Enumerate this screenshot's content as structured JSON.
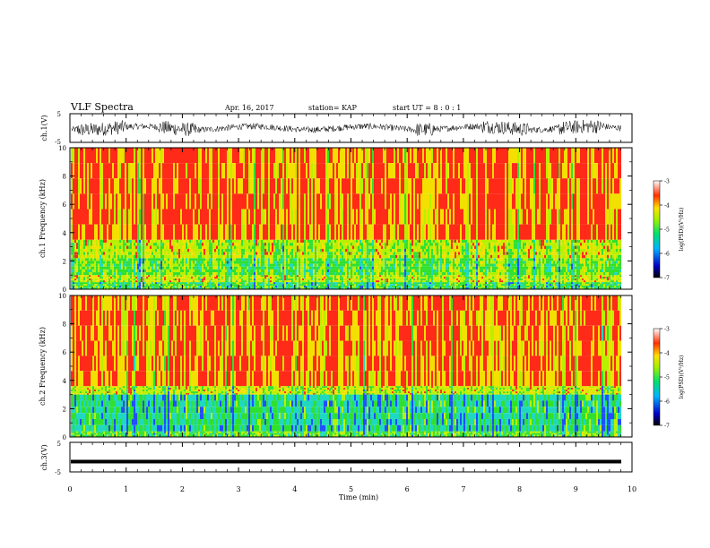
{
  "header": {
    "title": "VLF Spectra",
    "date": "Apr. 16, 2017",
    "station": "station= KAP",
    "start": "start UT = 8 : 0 : 1"
  },
  "chart_data": [
    {
      "type": "line",
      "name": "ch1-waveform",
      "ylabel": "ch.1(V)",
      "ylim": [
        -5,
        5
      ],
      "yticks": [
        "5",
        "-5"
      ],
      "xlim": [
        0,
        10
      ],
      "note_values": "approximate noisy waveform around 0 V with bursts up to about ±2.5 V"
    },
    {
      "type": "heatmap",
      "name": "ch1-spectrogram",
      "ylabel": "ch.1 Frequency (kHz)",
      "ylim": [
        0,
        10
      ],
      "yticks": [
        "0",
        "2",
        "4",
        "6",
        "8",
        "10"
      ],
      "xlim": [
        0,
        10
      ],
      "bands": [
        {
          "from": 0,
          "to": 0.5,
          "level": -5.2
        },
        {
          "from": 0.5,
          "to": 1.0,
          "level": -4.6
        },
        {
          "from": 1.0,
          "to": 2.2,
          "level": -5.0
        },
        {
          "from": 2.2,
          "to": 3.5,
          "level": -4.6
        },
        {
          "from": 3.5,
          "to": 10,
          "level": -3.9
        }
      ],
      "colorbar": {
        "label": "log(PSD)(V²/Hz)",
        "range": [
          -7,
          -3
        ],
        "ticks": [
          "-3",
          "-4",
          "-5",
          "-6",
          "-7"
        ]
      }
    },
    {
      "type": "heatmap",
      "name": "ch2-spectrogram",
      "ylabel": "ch.2 Frequency (kHz)",
      "ylim": [
        0,
        10
      ],
      "yticks": [
        "0",
        "2",
        "4",
        "6",
        "8",
        "10"
      ],
      "xlim": [
        0,
        10
      ],
      "bands": [
        {
          "from": 0,
          "to": 0.4,
          "level": -5.0
        },
        {
          "from": 0.4,
          "to": 3.0,
          "level": -5.4
        },
        {
          "from": 3.0,
          "to": 3.6,
          "level": -4.5
        },
        {
          "from": 3.6,
          "to": 10,
          "level": -3.9
        }
      ],
      "colorbar": {
        "label": "log(PSD)(V²/Hz)",
        "range": [
          -7,
          -3
        ],
        "ticks": [
          "-3",
          "-4",
          "-5",
          "-6",
          "-7"
        ]
      }
    },
    {
      "type": "line",
      "name": "ch3-waveform",
      "ylabel": "ch.3(V)",
      "ylim": [
        -5,
        5
      ],
      "yticks": [
        "5",
        "-5"
      ],
      "xlim": [
        0,
        10
      ],
      "constant_value": -1.5
    }
  ],
  "xaxis": {
    "label": "Time (min)",
    "ticks": [
      "0",
      "1",
      "2",
      "3",
      "4",
      "5",
      "6",
      "7",
      "8",
      "9",
      "10"
    ]
  },
  "colors": {
    "red": "#ff2020",
    "yellow": "#f0e000",
    "green": "#30e020",
    "cyan": "#20d0d0",
    "blue": "#2040ff"
  }
}
